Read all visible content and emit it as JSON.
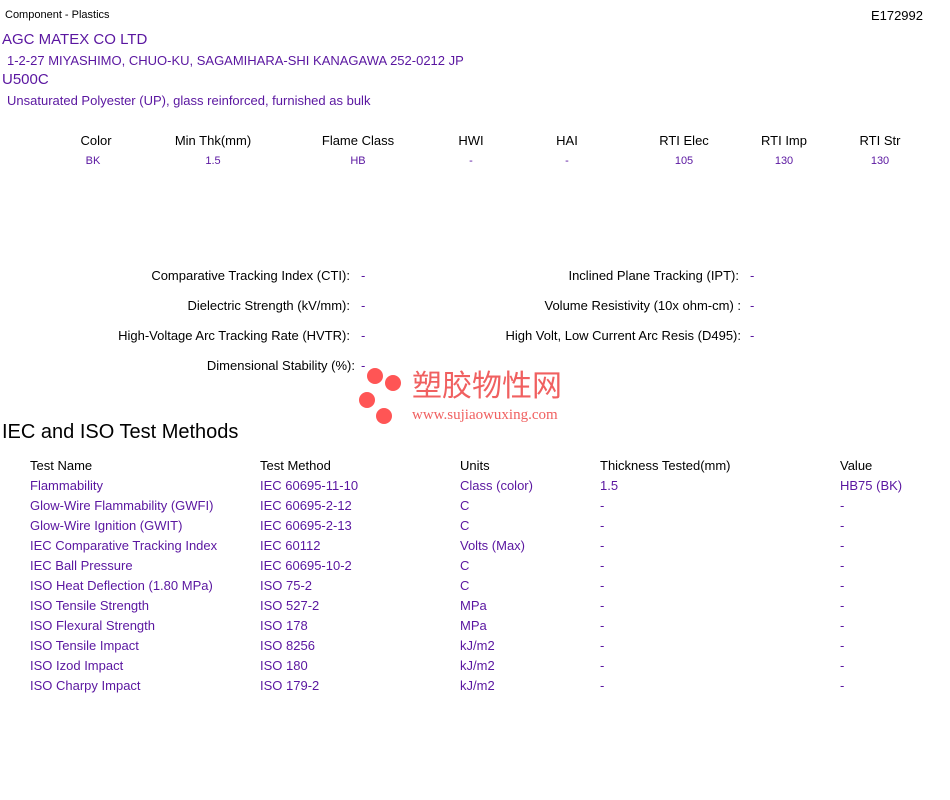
{
  "header": {
    "category": "Component - Plastics",
    "file_number": "E172992"
  },
  "company": {
    "name": "AGC MATEX CO LTD",
    "address": "1-2-27 MIYASHIMO, CHUO-KU, SAGAMIHARA-SHI  KANAGAWA  252-0212 JP"
  },
  "product": {
    "name": "U500C",
    "description": "Unsaturated Polyester (UP), glass reinforced, furnished as bulk"
  },
  "ratings": [
    {
      "label": "Color",
      "value": "BK"
    },
    {
      "label": "Min Thk(mm)",
      "value": "1.5"
    },
    {
      "label": "Flame Class",
      "value": "HB"
    },
    {
      "label": "HWI",
      "value": "-"
    },
    {
      "label": "HAI",
      "value": "-"
    },
    {
      "label": "RTI Elec",
      "value": "105"
    },
    {
      "label": "RTI Imp",
      "value": "130"
    },
    {
      "label": "RTI Str",
      "value": "130"
    }
  ],
  "properties_left": [
    {
      "label": "Comparative Tracking Index (CTI):",
      "value": "-"
    },
    {
      "label": "Dielectric Strength (kV/mm):",
      "value": "-"
    },
    {
      "label": "High-Voltage Arc Tracking Rate (HVTR):",
      "value": "-"
    },
    {
      "label": "Dimensional Stability (%):",
      "value": "-"
    }
  ],
  "properties_right": [
    {
      "label": "Inclined Plane Tracking (IPT):",
      "value": "-"
    },
    {
      "label": "Volume Resistivity (10x ohm-cm) :",
      "value": "-"
    },
    {
      "label": "High Volt, Low Current Arc Resis (D495):",
      "value": "-"
    }
  ],
  "watermark": {
    "title": "塑胶物性网",
    "url": "www.sujiaowuxing.com"
  },
  "iec": {
    "title": "IEC and ISO Test Methods",
    "columns": [
      "Test Name",
      "Test Method",
      "Units",
      "Thickness Tested(mm)",
      "Value"
    ],
    "rows": [
      [
        "Flammability",
        "IEC 60695-11-10",
        "Class (color)",
        "1.5",
        "HB75 (BK)"
      ],
      [
        "Glow-Wire Flammability (GWFI)",
        "IEC 60695-2-12",
        "C",
        "-",
        "-"
      ],
      [
        "Glow-Wire Ignition (GWIT)",
        "IEC 60695-2-13",
        "C",
        "-",
        "-"
      ],
      [
        "IEC Comparative Tracking Index",
        "IEC 60112",
        "Volts (Max)",
        "-",
        "-"
      ],
      [
        "IEC Ball Pressure",
        "IEC 60695-10-2",
        "C",
        "-",
        "-"
      ],
      [
        "ISO Heat Deflection (1.80 MPa)",
        "ISO 75-2",
        "C",
        "-",
        "-"
      ],
      [
        "ISO Tensile Strength",
        "ISO 527-2",
        "MPa",
        "-",
        "-"
      ],
      [
        "ISO Flexural Strength",
        "ISO 178",
        "MPa",
        "-",
        "-"
      ],
      [
        "ISO Tensile Impact",
        "ISO 8256",
        "kJ/m2",
        "-",
        "-"
      ],
      [
        "ISO Izod Impact",
        "ISO 180",
        "kJ/m2",
        "-",
        "-"
      ],
      [
        "ISO Charpy Impact",
        "ISO 179-2",
        "kJ/m2",
        "-",
        "-"
      ]
    ]
  },
  "colors": {
    "text_accent": "#5a16a0",
    "watermark": "#f05a5a"
  }
}
